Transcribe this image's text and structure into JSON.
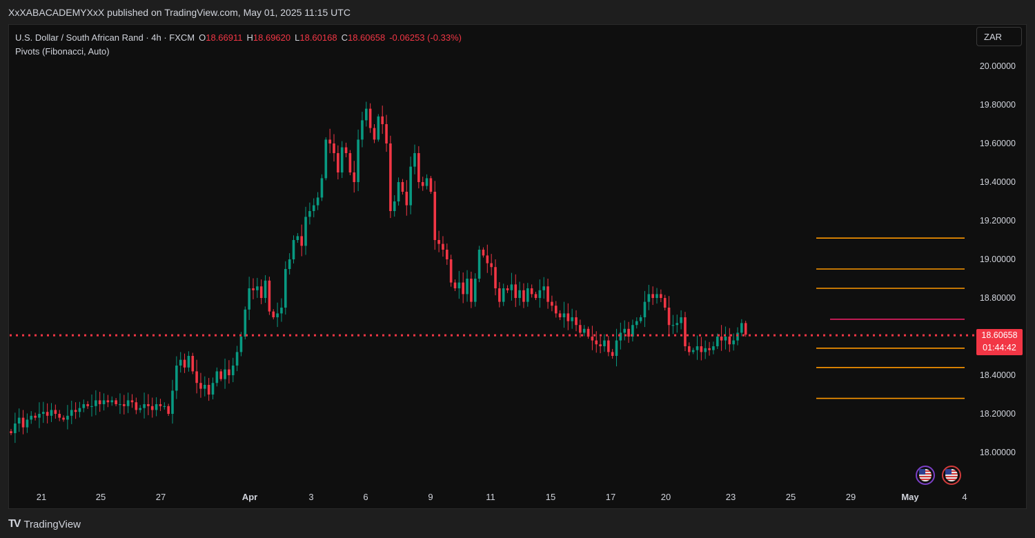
{
  "header": {
    "publisher_line": "XxXABACADEMYXxX published on TradingView.com, May 01, 2025 11:15 UTC"
  },
  "legend": {
    "symbol": "U.S. Dollar / South African Rand · 4h · FXCM",
    "open_label": "O",
    "open": "18.66911",
    "high_label": "H",
    "high": "18.69620",
    "low_label": "L",
    "low": "18.60168",
    "close_label": "C",
    "close": "18.60658",
    "change": "-0.06253 (-0.33%)",
    "indicator": "Pivots (Fibonacci, Auto)"
  },
  "currency_button": "ZAR",
  "last_price": {
    "value": "18.60658",
    "countdown": "01:44:42"
  },
  "footer": {
    "brand_icon": "TV",
    "brand": "TradingView"
  },
  "colors": {
    "up": "#089981",
    "down": "#f23645",
    "pivot": "#ff9800",
    "pivot_r": "#e91e63",
    "bg": "#0f0f0f"
  },
  "chart_data": {
    "type": "candlestick",
    "symbol": "USD/ZAR",
    "interval": "4h",
    "ylim": [
      17.9,
      20.2
    ],
    "y_ticks": [
      "20.00000",
      "19.80000",
      "19.60000",
      "19.40000",
      "19.20000",
      "19.00000",
      "18.80000",
      "18.60000",
      "18.40000",
      "18.20000",
      "18.00000"
    ],
    "x_ticks": [
      {
        "label": "21",
        "pos": 0
      },
      {
        "label": "25",
        "pos": 1
      },
      {
        "label": "27",
        "pos": 2
      },
      {
        "label": "Apr",
        "pos": 3,
        "bold": true
      },
      {
        "label": "3",
        "pos": 4
      },
      {
        "label": "6",
        "pos": 5
      },
      {
        "label": "9",
        "pos": 6
      },
      {
        "label": "11",
        "pos": 7
      },
      {
        "label": "15",
        "pos": 8
      },
      {
        "label": "17",
        "pos": 9
      },
      {
        "label": "20",
        "pos": 10
      },
      {
        "label": "23",
        "pos": 11
      },
      {
        "label": "25",
        "pos": 12
      },
      {
        "label": "29",
        "pos": 13
      },
      {
        "label": "May",
        "pos": 14,
        "bold": true
      },
      {
        "label": "4",
        "pos": 15
      }
    ],
    "pivot_levels": [
      19.11,
      18.95,
      18.85,
      18.69,
      18.54,
      18.44,
      18.28
    ],
    "last_price": 18.60658,
    "closes": [
      18.1,
      18.15,
      18.18,
      18.13,
      18.17,
      18.19,
      18.18,
      18.2,
      18.21,
      18.19,
      18.22,
      18.2,
      18.18,
      18.17,
      18.19,
      18.22,
      18.21,
      18.23,
      18.25,
      18.24,
      18.24,
      18.27,
      18.25,
      18.27,
      18.26,
      18.27,
      18.25,
      18.25,
      18.24,
      18.27,
      18.26,
      18.22,
      18.23,
      18.25,
      18.24,
      18.22,
      18.25,
      18.24,
      18.24,
      18.2,
      18.32,
      18.45,
      18.48,
      18.44,
      18.5,
      18.42,
      18.36,
      18.33,
      18.35,
      18.3,
      18.36,
      18.42,
      18.38,
      18.43,
      18.4,
      18.45,
      18.52,
      18.6,
      18.74,
      18.85,
      18.84,
      18.86,
      18.8,
      18.89,
      18.73,
      18.7,
      18.72,
      18.75,
      18.95,
      19.0,
      19.1,
      19.12,
      19.07,
      19.22,
      19.25,
      19.28,
      19.32,
      19.42,
      19.62,
      19.6,
      19.55,
      19.45,
      19.58,
      19.55,
      19.45,
      19.4,
      19.62,
      19.72,
      19.78,
      19.68,
      19.62,
      19.74,
      19.7,
      19.6,
      19.25,
      19.3,
      19.4,
      19.35,
      19.28,
      19.48,
      19.55,
      19.4,
      19.38,
      19.42,
      19.35,
      19.1,
      19.08,
      19.05,
      19.0,
      18.88,
      18.85,
      18.88,
      18.82,
      18.9,
      18.78,
      18.9,
      19.05,
      19.02,
      18.98,
      18.96,
      18.85,
      18.78,
      18.85,
      18.84,
      18.87,
      18.8,
      18.84,
      18.78,
      18.85,
      18.82,
      18.8,
      18.84,
      18.86,
      18.78,
      18.76,
      18.72,
      18.7,
      18.72,
      18.68,
      18.7,
      18.66,
      18.62,
      18.64,
      18.6,
      18.58,
      18.56,
      18.55,
      18.58,
      18.52,
      18.5,
      18.58,
      18.62,
      18.64,
      18.6,
      18.66,
      18.68,
      18.7,
      18.78,
      18.82,
      18.8,
      18.82,
      18.8,
      18.75,
      18.66,
      18.66,
      18.67,
      18.7,
      18.55,
      18.52,
      18.53,
      18.55,
      18.52,
      18.54,
      18.53,
      18.55,
      18.6,
      18.58,
      18.6,
      18.56,
      18.58,
      18.62,
      18.67,
      18.61
    ]
  }
}
